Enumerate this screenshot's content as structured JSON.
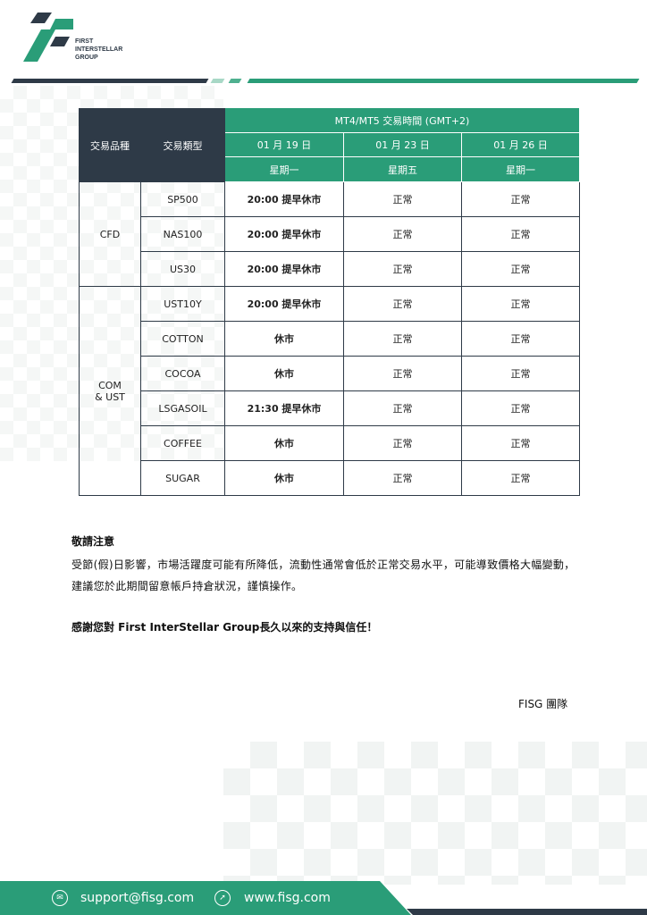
{
  "brand": {
    "name_lines": [
      "FIRST",
      "INTERSTELLAR",
      "GROUP"
    ],
    "green": "#2a9d78",
    "dark": "#2e3a47"
  },
  "table": {
    "head_category": "交易品種",
    "head_type": "交易類型",
    "head_hours": "MT4/MT5 交易時間 (GMT+2)",
    "dates": [
      "01 月 19 日",
      "01 月 23 日",
      "01 月 26 日"
    ],
    "weekdays": [
      "星期一",
      "星期五",
      "星期一"
    ],
    "groups": [
      {
        "name": "CFD",
        "rows": [
          {
            "type": "SP500",
            "values": [
              "20:00 提早休市",
              "正常",
              "正常"
            ]
          },
          {
            "type": "NAS100",
            "values": [
              "20:00 提早休市",
              "正常",
              "正常"
            ]
          },
          {
            "type": "US30",
            "values": [
              "20:00 提早休市",
              "正常",
              "正常"
            ]
          }
        ]
      },
      {
        "name": "COM\n& UST",
        "rows": [
          {
            "type": "UST10Y",
            "values": [
              "20:00 提早休市",
              "正常",
              "正常"
            ]
          },
          {
            "type": "COTTON",
            "values": [
              "休市",
              "正常",
              "正常"
            ]
          },
          {
            "type": "COCOA",
            "values": [
              "休市",
              "正常",
              "正常"
            ]
          },
          {
            "type": "LSGASOIL",
            "values": [
              "21:30 提早休市",
              "正常",
              "正常"
            ]
          },
          {
            "type": "COFFEE",
            "values": [
              "休市",
              "正常",
              "正常"
            ]
          },
          {
            "type": "SUGAR",
            "values": [
              "休市",
              "正常",
              "正常"
            ]
          }
        ]
      }
    ]
  },
  "notice": {
    "title": "敬請注意",
    "body": "受節(假)日影響，市場活躍度可能有所降低，流動性通常會低於正常交易水平，可能導致價格大幅變動，建議您於此期間留意帳戶持倉狀況，謹慎操作。",
    "thanks": "感謝您對 First InterStellar Group長久以來的支持與信任！",
    "signature": "FISG 團隊"
  },
  "footer": {
    "email": "support@fisg.com",
    "website": "www.fisg.com",
    "email_icon": "envelope-icon",
    "web_icon": "cursor-icon"
  }
}
